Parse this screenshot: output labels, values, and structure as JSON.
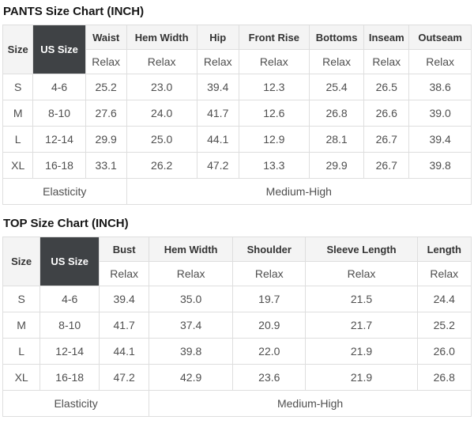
{
  "colors": {
    "us_size_header_bg": "#3f4245",
    "us_size_header_text": "#ffffff",
    "header_bg": "#f4f4f4",
    "border": "#dedede",
    "header_text": "#333333",
    "value_text": "#4f4f4f",
    "title_text": "#151515"
  },
  "tables": [
    {
      "title": "PANTS Size Chart (INCH)",
      "size_header": "Size",
      "us_size_header": "US Size",
      "measures": [
        "Waist",
        "Hem Width",
        "Hip",
        "Front Rise",
        "Bottoms",
        "Inseam",
        "Outseam"
      ],
      "fit_row": [
        "Relax",
        "Relax",
        "Relax",
        "Relax",
        "Relax",
        "Relax",
        "Relax"
      ],
      "rows": [
        {
          "size": "S",
          "us_size": "4-6",
          "values": [
            "25.2",
            "23.0",
            "39.4",
            "12.3",
            "25.4",
            "26.5",
            "38.6"
          ]
        },
        {
          "size": "M",
          "us_size": "8-10",
          "values": [
            "27.6",
            "24.0",
            "41.7",
            "12.6",
            "26.8",
            "26.6",
            "39.0"
          ]
        },
        {
          "size": "L",
          "us_size": "12-14",
          "values": [
            "29.9",
            "25.0",
            "44.1",
            "12.9",
            "28.1",
            "26.7",
            "39.4"
          ]
        },
        {
          "size": "XL",
          "us_size": "16-18",
          "values": [
            "33.1",
            "26.2",
            "47.2",
            "13.3",
            "29.9",
            "26.7",
            "39.8"
          ]
        }
      ],
      "footer": {
        "label": "Elasticity",
        "value": "Medium-High",
        "label_colspan": 3,
        "value_colspan": 6
      }
    },
    {
      "title": "TOP Size Chart (INCH)",
      "size_header": "Size",
      "us_size_header": "US Size",
      "measures": [
        "Bust",
        "Hem Width",
        "Shoulder",
        "Sleeve Length",
        "Length"
      ],
      "fit_row": [
        "Relax",
        "Relax",
        "Relax",
        "Relax",
        "Relax"
      ],
      "rows": [
        {
          "size": "S",
          "us_size": "4-6",
          "values": [
            "39.4",
            "35.0",
            "19.7",
            "21.5",
            "24.4"
          ]
        },
        {
          "size": "M",
          "us_size": "8-10",
          "values": [
            "41.7",
            "37.4",
            "20.9",
            "21.7",
            "25.2"
          ]
        },
        {
          "size": "L",
          "us_size": "12-14",
          "values": [
            "44.1",
            "39.8",
            "22.0",
            "21.9",
            "26.0"
          ]
        },
        {
          "size": "XL",
          "us_size": "16-18",
          "values": [
            "47.2",
            "42.9",
            "23.6",
            "21.9",
            "26.8"
          ]
        }
      ],
      "footer": {
        "label": "Elasticity",
        "value": "Medium-High",
        "label_colspan": 3,
        "value_colspan": 4
      }
    }
  ]
}
